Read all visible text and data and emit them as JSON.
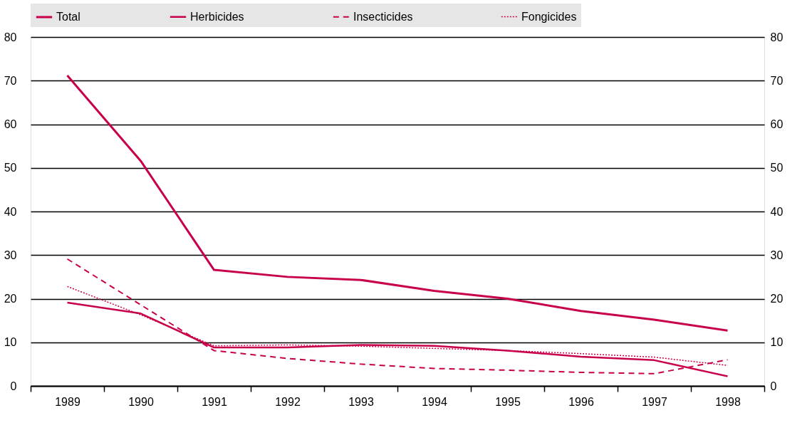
{
  "chart_data": {
    "type": "line",
    "categories": [
      "1989",
      "1990",
      "1991",
      "1992",
      "1993",
      "1994",
      "1995",
      "1996",
      "1997",
      "1998"
    ],
    "ylim": [
      0,
      80
    ],
    "yticks": [
      0,
      10,
      20,
      30,
      40,
      50,
      60,
      70,
      80
    ],
    "y2lim": [
      0,
      80
    ],
    "y2ticks": [
      0,
      10,
      20,
      30,
      40,
      50,
      60,
      70,
      80
    ],
    "grid": "y",
    "legend": "top",
    "marker": "none",
    "series": [
      {
        "name": "Total",
        "color": "#c8004b",
        "line_style": "solid",
        "values": [
          71.2,
          51.6,
          26.6,
          25.0,
          24.3,
          21.8,
          20.0,
          17.2,
          15.2,
          12.7
        ]
      },
      {
        "name": "Herbicides",
        "color": "#c8004b",
        "line_style": "solid",
        "values": [
          19.1,
          16.6,
          8.8,
          8.8,
          9.4,
          9.2,
          8.1,
          6.7,
          5.9,
          2.2
        ]
      },
      {
        "name": "Insecticides",
        "color": "#c8004b",
        "line_style": "dashed",
        "values": [
          29.1,
          18.6,
          8.1,
          6.3,
          5.0,
          4.0,
          3.6,
          3.1,
          2.8,
          6.0
        ]
      },
      {
        "name": "Fongicides",
        "color": "#c8004b",
        "line_style": "dotted",
        "values": [
          22.8,
          16.3,
          9.2,
          9.4,
          9.1,
          8.6,
          8.1,
          7.4,
          6.6,
          4.7
        ]
      }
    ]
  }
}
